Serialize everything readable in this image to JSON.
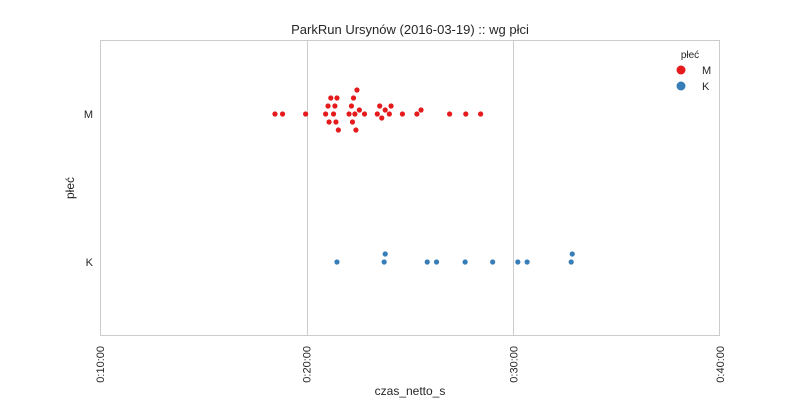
{
  "chart_data": {
    "type": "scatter",
    "title": "ParkRun Ursynów (2016-03-19) :: wg płci",
    "xlabel": "czas_netto_s",
    "ylabel": "płeć",
    "xlim_seconds": [
      600,
      2400
    ],
    "x_ticks": [
      {
        "value": 600,
        "label": "0:10:00"
      },
      {
        "value": 1200,
        "label": "0:20:00"
      },
      {
        "value": 1800,
        "label": "0:30:00"
      },
      {
        "value": 2400,
        "label": "0:40:00"
      }
    ],
    "categories": [
      "M",
      "K"
    ],
    "grid": true,
    "legend": {
      "title": "płeć",
      "placement": "top-right"
    },
    "series": [
      {
        "name": "M",
        "color": "#e41a1c",
        "x_seconds": [
          1108,
          1130,
          1197,
          1255,
          1262,
          1265,
          1270,
          1278,
          1282,
          1285,
          1288,
          1292,
          1323,
          1330,
          1333,
          1336,
          1340,
          1343,
          1346,
          1353,
          1368,
          1405,
          1412,
          1418,
          1428,
          1440,
          1445,
          1478,
          1520,
          1532,
          1615,
          1662,
          1705
        ]
      },
      {
        "name": "K",
        "color": "#377eb8",
        "x_seconds": [
          1288,
          1425,
          1428,
          1550,
          1577,
          1660,
          1740,
          1813,
          1840,
          1968,
          1971
        ]
      }
    ]
  }
}
